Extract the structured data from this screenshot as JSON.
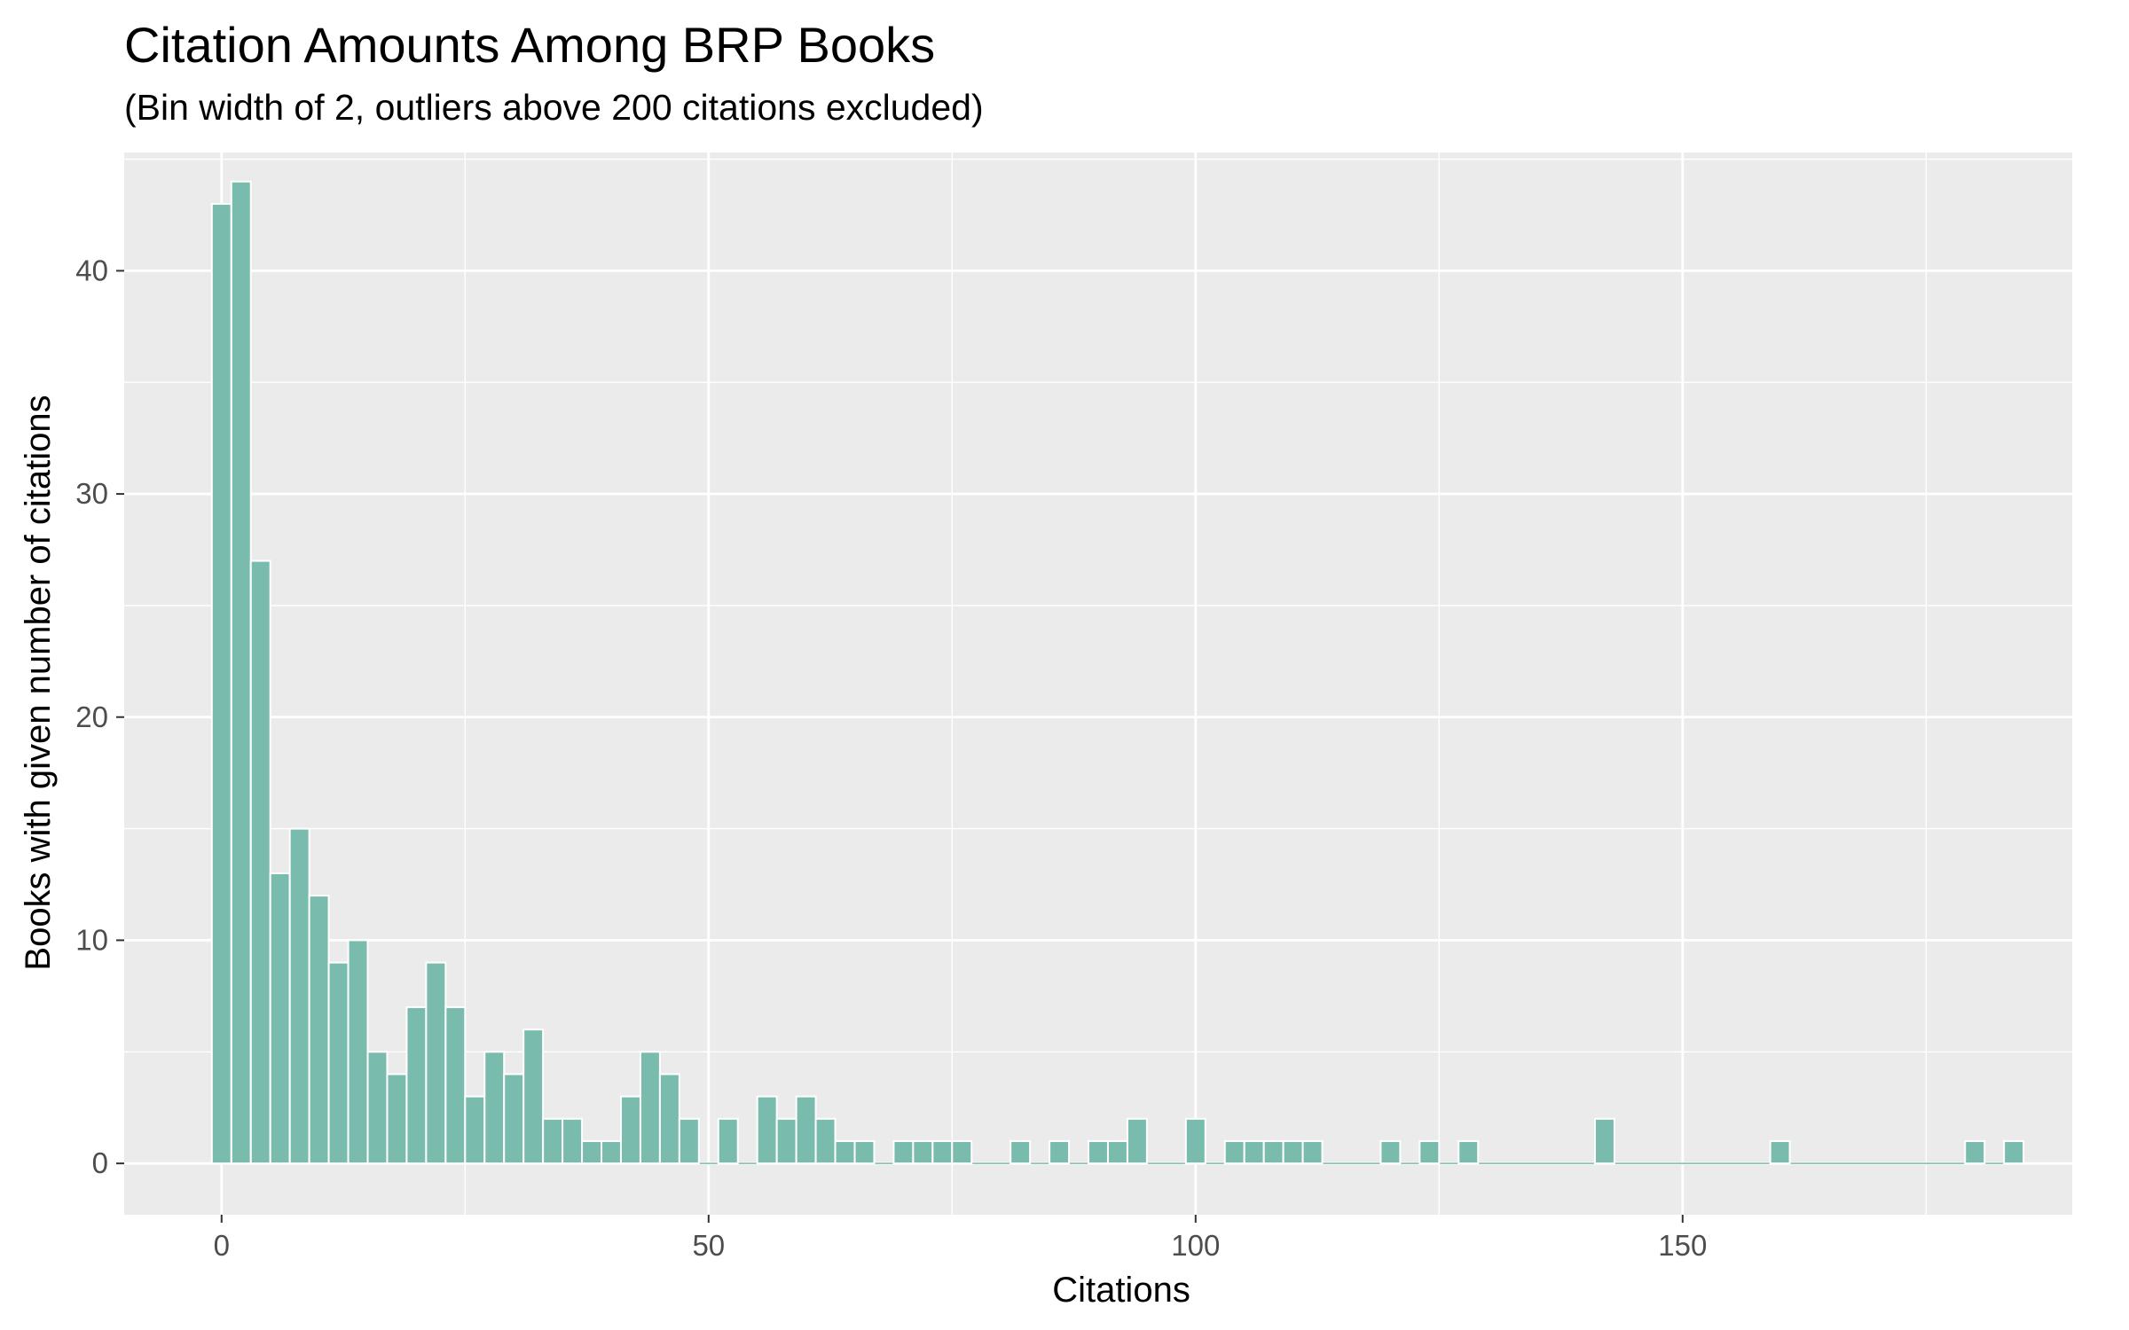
{
  "chart_data": {
    "type": "bar",
    "title": "Citation Amounts Among BRP Books",
    "subtitle": "(Bin width of 2, outliers above 200 citations excluded)",
    "xlabel": "Citations",
    "ylabel": "Books with given number of citations",
    "xlim": [
      -10,
      190
    ],
    "ylim": [
      -2.3,
      45.3
    ],
    "bin_width": 2,
    "x_ticks": [
      0,
      50,
      100,
      150
    ],
    "y_ticks": [
      0,
      10,
      20,
      30,
      40
    ],
    "grid": true,
    "bar_color": "#79BCAE",
    "panel_color": "#EBEBEB",
    "grid_color": "#FFFFFF",
    "bins": [
      {
        "x": 0,
        "count": 43
      },
      {
        "x": 2,
        "count": 44
      },
      {
        "x": 4,
        "count": 27
      },
      {
        "x": 6,
        "count": 13
      },
      {
        "x": 8,
        "count": 15
      },
      {
        "x": 10,
        "count": 12
      },
      {
        "x": 12,
        "count": 9
      },
      {
        "x": 14,
        "count": 10
      },
      {
        "x": 16,
        "count": 5
      },
      {
        "x": 18,
        "count": 4
      },
      {
        "x": 20,
        "count": 7
      },
      {
        "x": 22,
        "count": 9
      },
      {
        "x": 24,
        "count": 7
      },
      {
        "x": 26,
        "count": 3
      },
      {
        "x": 28,
        "count": 5
      },
      {
        "x": 30,
        "count": 4
      },
      {
        "x": 32,
        "count": 6
      },
      {
        "x": 34,
        "count": 2
      },
      {
        "x": 36,
        "count": 2
      },
      {
        "x": 38,
        "count": 1
      },
      {
        "x": 40,
        "count": 1
      },
      {
        "x": 42,
        "count": 3
      },
      {
        "x": 44,
        "count": 5
      },
      {
        "x": 46,
        "count": 4
      },
      {
        "x": 48,
        "count": 2
      },
      {
        "x": 50,
        "count": 0
      },
      {
        "x": 52,
        "count": 2
      },
      {
        "x": 54,
        "count": 0
      },
      {
        "x": 56,
        "count": 3
      },
      {
        "x": 58,
        "count": 2
      },
      {
        "x": 60,
        "count": 3
      },
      {
        "x": 62,
        "count": 2
      },
      {
        "x": 64,
        "count": 1
      },
      {
        "x": 66,
        "count": 1
      },
      {
        "x": 68,
        "count": 0
      },
      {
        "x": 70,
        "count": 1
      },
      {
        "x": 72,
        "count": 1
      },
      {
        "x": 74,
        "count": 1
      },
      {
        "x": 76,
        "count": 1
      },
      {
        "x": 78,
        "count": 0
      },
      {
        "x": 80,
        "count": 0
      },
      {
        "x": 82,
        "count": 1
      },
      {
        "x": 84,
        "count": 0
      },
      {
        "x": 86,
        "count": 1
      },
      {
        "x": 88,
        "count": 0
      },
      {
        "x": 90,
        "count": 1
      },
      {
        "x": 92,
        "count": 1
      },
      {
        "x": 94,
        "count": 2
      },
      {
        "x": 96,
        "count": 0
      },
      {
        "x": 98,
        "count": 0
      },
      {
        "x": 100,
        "count": 2
      },
      {
        "x": 102,
        "count": 0
      },
      {
        "x": 104,
        "count": 1
      },
      {
        "x": 106,
        "count": 1
      },
      {
        "x": 108,
        "count": 1
      },
      {
        "x": 110,
        "count": 1
      },
      {
        "x": 112,
        "count": 1
      },
      {
        "x": 114,
        "count": 0
      },
      {
        "x": 116,
        "count": 0
      },
      {
        "x": 118,
        "count": 0
      },
      {
        "x": 120,
        "count": 1
      },
      {
        "x": 122,
        "count": 0
      },
      {
        "x": 124,
        "count": 1
      },
      {
        "x": 126,
        "count": 0
      },
      {
        "x": 128,
        "count": 1
      },
      {
        "x": 130,
        "count": 0
      },
      {
        "x": 132,
        "count": 0
      },
      {
        "x": 134,
        "count": 0
      },
      {
        "x": 136,
        "count": 0
      },
      {
        "x": 138,
        "count": 0
      },
      {
        "x": 140,
        "count": 0
      },
      {
        "x": 142,
        "count": 2
      },
      {
        "x": 144,
        "count": 0
      },
      {
        "x": 146,
        "count": 0
      },
      {
        "x": 148,
        "count": 0
      },
      {
        "x": 150,
        "count": 0
      },
      {
        "x": 152,
        "count": 0
      },
      {
        "x": 154,
        "count": 0
      },
      {
        "x": 156,
        "count": 0
      },
      {
        "x": 158,
        "count": 0
      },
      {
        "x": 160,
        "count": 1
      },
      {
        "x": 162,
        "count": 0
      },
      {
        "x": 164,
        "count": 0
      },
      {
        "x": 166,
        "count": 0
      },
      {
        "x": 168,
        "count": 0
      },
      {
        "x": 170,
        "count": 0
      },
      {
        "x": 172,
        "count": 0
      },
      {
        "x": 174,
        "count": 0
      },
      {
        "x": 176,
        "count": 0
      },
      {
        "x": 178,
        "count": 0
      },
      {
        "x": 180,
        "count": 1
      },
      {
        "x": 182,
        "count": 0
      },
      {
        "x": 184,
        "count": 1
      }
    ]
  }
}
